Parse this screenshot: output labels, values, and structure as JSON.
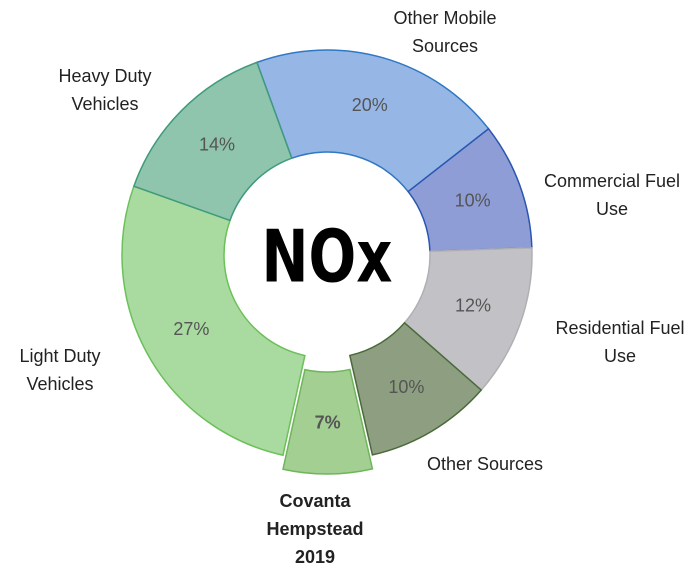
{
  "chart_data": {
    "type": "donut",
    "center_label": "NOx",
    "categories": [
      "Other Mobile Sources",
      "Commercial Fuel Use",
      "Residential Fuel Use",
      "Other Sources",
      "Covanta Hempstead 2019",
      "Light Duty Vehicles",
      "Heavy Duty Vehicles"
    ],
    "values": [
      20,
      10,
      12,
      10,
      7,
      27,
      14
    ],
    "value_labels": [
      "20%",
      "10%",
      "12%",
      "10%",
      "7%",
      "27%",
      "14%"
    ],
    "colors": [
      "#96b6e6",
      "#8e9dd6",
      "#c2c2c6",
      "#8d9f80",
      "#a3cf92",
      "#a9dba0",
      "#8ec5ac"
    ],
    "edge_colors": [
      "#2f78c4",
      "#2a55b0",
      "#b0b0b4",
      "#4a6a3a",
      "#6fb65a",
      "#6cc05a",
      "#3f9a7e"
    ],
    "highlight": "Covanta Hempstead 2019"
  }
}
